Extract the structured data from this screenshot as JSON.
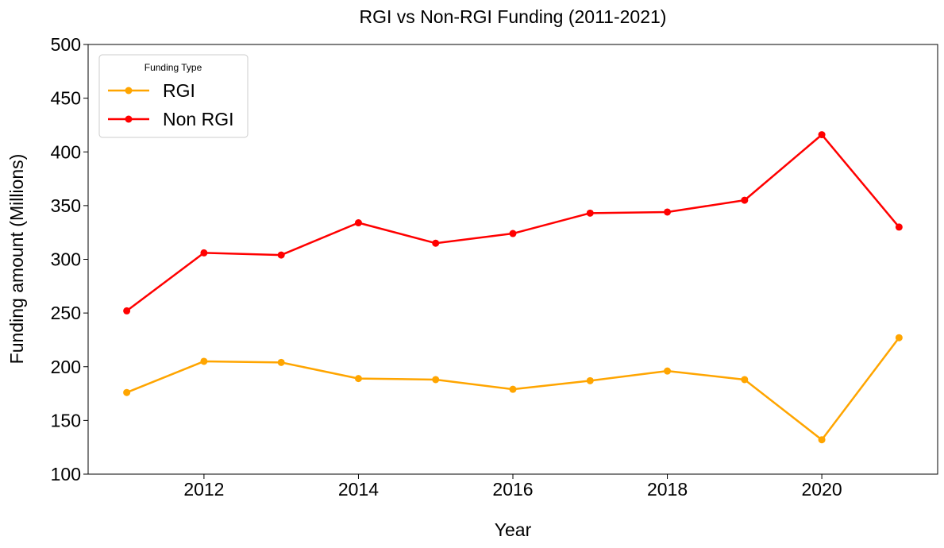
{
  "chart_data": {
    "type": "line",
    "title": "RGI vs Non-RGI Funding (2011-2021)",
    "xlabel": "Year",
    "ylabel": "Funding amount (Millions)",
    "x": [
      2011,
      2012,
      2013,
      2014,
      2015,
      2016,
      2017,
      2018,
      2019,
      2020,
      2021
    ],
    "xlim": [
      2010.5,
      2021.5
    ],
    "ylim": [
      100,
      500
    ],
    "xticks": [
      2012,
      2014,
      2016,
      2018,
      2020
    ],
    "yticks": [
      100,
      150,
      200,
      250,
      300,
      350,
      400,
      450,
      500
    ],
    "grid": false,
    "legend": {
      "title": "Funding Type",
      "placement": "top-left"
    },
    "series": [
      {
        "name": "RGI",
        "color": "#FFA500",
        "values": [
          176,
          205,
          204,
          189,
          188,
          179,
          187,
          196,
          188,
          132,
          227
        ]
      },
      {
        "name": "Non RGI",
        "color": "#FF0000",
        "values": [
          252,
          306,
          304,
          334,
          315,
          324,
          343,
          344,
          355,
          416,
          330
        ]
      }
    ]
  }
}
